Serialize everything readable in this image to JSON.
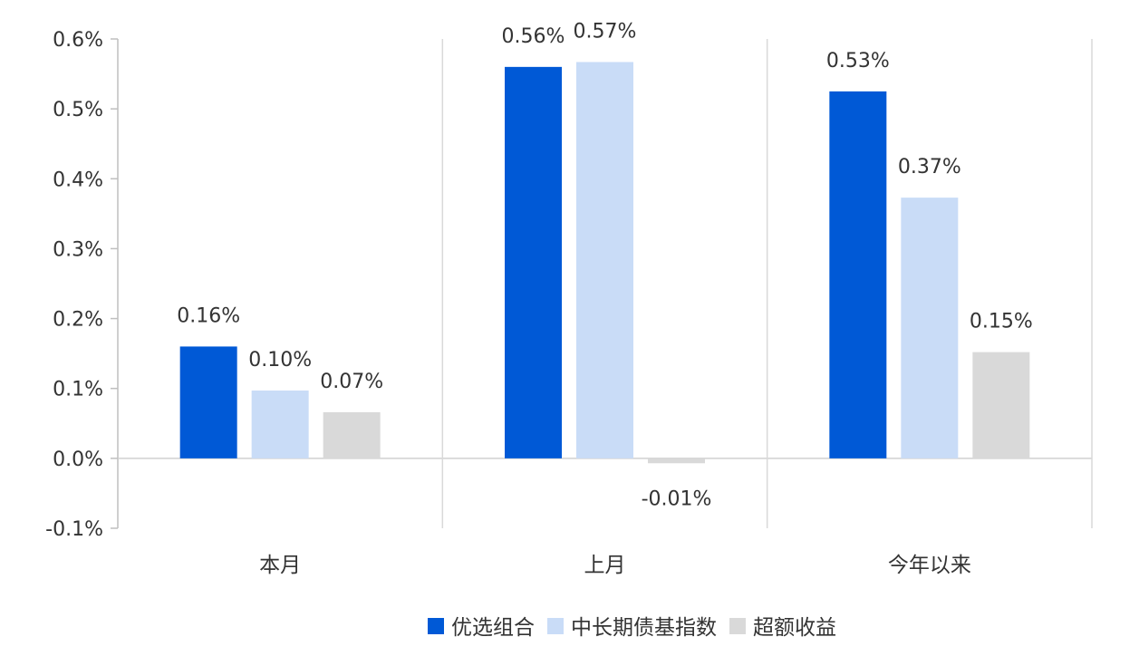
{
  "chart_data": {
    "type": "bar",
    "title": "",
    "xlabel": "",
    "ylabel": "",
    "categories": [
      "本月",
      "上月",
      "今年以来"
    ],
    "series": [
      {
        "name": "优选组合",
        "values": [
          0.16,
          0.56,
          0.525
        ],
        "labels": [
          "0.16%",
          "0.56%",
          "0.53%"
        ],
        "color": "#0059d6"
      },
      {
        "name": "中长期债基指数",
        "values": [
          0.097,
          0.567,
          0.373
        ],
        "labels": [
          "0.10%",
          "0.57%",
          "0.37%"
        ],
        "color": "#c9dcf7"
      },
      {
        "name": "超额收益",
        "values": [
          0.066,
          -0.007,
          0.152
        ],
        "labels": [
          "0.07%",
          "-0.01%",
          "0.15%"
        ],
        "color": "#d9d9d9"
      }
    ],
    "ylim": [
      -0.1,
      0.6
    ],
    "yticks": [
      {
        "value": 0.6,
        "label": "0.6%"
      },
      {
        "value": 0.5,
        "label": "0.5%"
      },
      {
        "value": 0.4,
        "label": "0.4%"
      },
      {
        "value": 0.3,
        "label": "0.3%"
      },
      {
        "value": 0.2,
        "label": "0.2%"
      },
      {
        "value": 0.1,
        "label": "0.1%"
      },
      {
        "value": 0.0,
        "label": "0.0%"
      },
      {
        "value": -0.1,
        "label": "-0.1%"
      }
    ],
    "grid": false,
    "legend_position": "bottom"
  }
}
